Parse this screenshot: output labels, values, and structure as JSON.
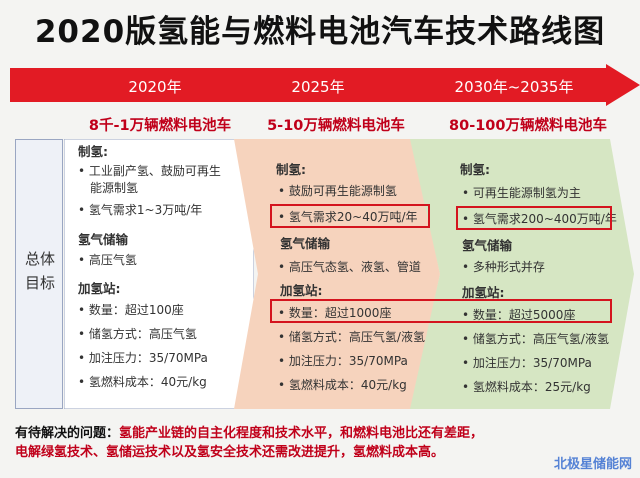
{
  "title": "2020版氢能与燃料电池汽车技术路线图",
  "timeline": {
    "years": [
      "2020年",
      "2025年",
      "2030年~2035年"
    ],
    "headlines": [
      "8千-1万辆燃料电池车",
      "5-10万辆燃料电池车",
      "80-100万辆燃料电池车"
    ]
  },
  "left_label": [
    "总体",
    "目标"
  ],
  "columns": [
    {
      "sections": [
        {
          "heading": "制氢:",
          "items": [
            "工业副产氢、鼓励可再生",
            "能源制氢",
            "氢气需求1~3万吨/年"
          ]
        },
        {
          "heading": "氢气储输",
          "items": [
            "高压气氢"
          ]
        },
        {
          "heading": "加氢站:",
          "items": [
            "数量：超过100座",
            "储氢方式：高压气氢",
            "加注压力：35/70MPa",
            "氢燃料成本：40元/kg"
          ]
        }
      ]
    },
    {
      "sections": [
        {
          "heading": "制氢:",
          "items": [
            "鼓励可再生能源制氢",
            "氢气需求20~40万吨/年"
          ]
        },
        {
          "heading": "氢气储输",
          "items": [
            "高压气态氢、液氢、管道"
          ]
        },
        {
          "heading": "加氢站:",
          "items": [
            "数量：超过1000座",
            "储氢方式：高压气氢/液氢",
            "加注压力：35/70MPa",
            "氢燃料成本：40元/kg"
          ]
        }
      ]
    },
    {
      "sections": [
        {
          "heading": "制氢:",
          "items": [
            "可再生能源制氢为主",
            "氢气需求200~400万吨/年"
          ]
        },
        {
          "heading": "氢气储输",
          "items": [
            "多种形式并存"
          ]
        },
        {
          "heading": "加氢站:",
          "items": [
            "数量：超过5000座",
            "储氢方式：高压气氢/液氢",
            "加注压力：35/70MPa",
            "氢燃料成本：25元/kg"
          ]
        }
      ]
    }
  ],
  "footer": {
    "lead": "有待解决的问题：",
    "line1": "氢能产业链的自主化程度和技术水平，和燃料电池比还有差距，",
    "line2": "电解绿氢技术、氢储运技术以及氢安全技术还需改进提升，氢燃料成本高。"
  },
  "watermark": "北极星储能网",
  "colors": {
    "arrow": "#e21b24",
    "col1": "#ffffff",
    "col2": "#f6d3bd",
    "col3": "#d6e6c3",
    "accent_red": "#c0001a"
  }
}
